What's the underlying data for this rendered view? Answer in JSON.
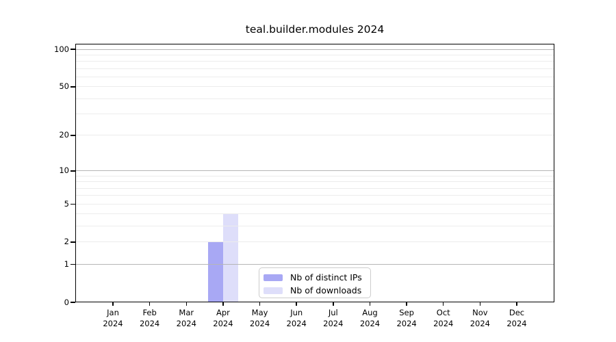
{
  "chart_data": {
    "type": "bar",
    "title": "teal.builder.modules 2024",
    "categories": [
      "Jan 2024",
      "Feb 2024",
      "Mar 2024",
      "Apr 2024",
      "May 2024",
      "Jun 2024",
      "Jul 2024",
      "Aug 2024",
      "Sep 2024",
      "Oct 2024",
      "Nov 2024",
      "Dec 2024"
    ],
    "series": [
      {
        "name": "Nb of distinct IPs",
        "color": "#a8a8f4",
        "values": [
          0,
          0,
          0,
          2,
          0,
          0,
          0,
          0,
          0,
          0,
          0,
          0
        ]
      },
      {
        "name": "Nb of downloads",
        "color": "#dedefa",
        "values": [
          0,
          0,
          0,
          4,
          0,
          0,
          0,
          0,
          0,
          0,
          0,
          0
        ]
      }
    ],
    "xlabel": "",
    "ylabel": "",
    "yscale": "log1p",
    "ylim": [
      0,
      100
    ],
    "yticks": [
      0,
      1,
      2,
      5,
      10,
      20,
      50,
      100
    ],
    "minor_yticks": [
      3,
      4,
      6,
      7,
      8,
      9,
      30,
      40,
      60,
      70,
      80,
      90
    ],
    "major_grid_yticks": [
      1,
      10,
      100
    ],
    "grid": "horizontal",
    "legend": {
      "position": "lower center"
    },
    "colors": {
      "bar_distinct_ips": "#a8a8f4",
      "bar_downloads": "#dedefa",
      "major_grid": "#b5b5b5",
      "minor_grid": "#ececec",
      "axis": "#000000",
      "background": "#ffffff",
      "legend_border": "#cccccc"
    }
  }
}
